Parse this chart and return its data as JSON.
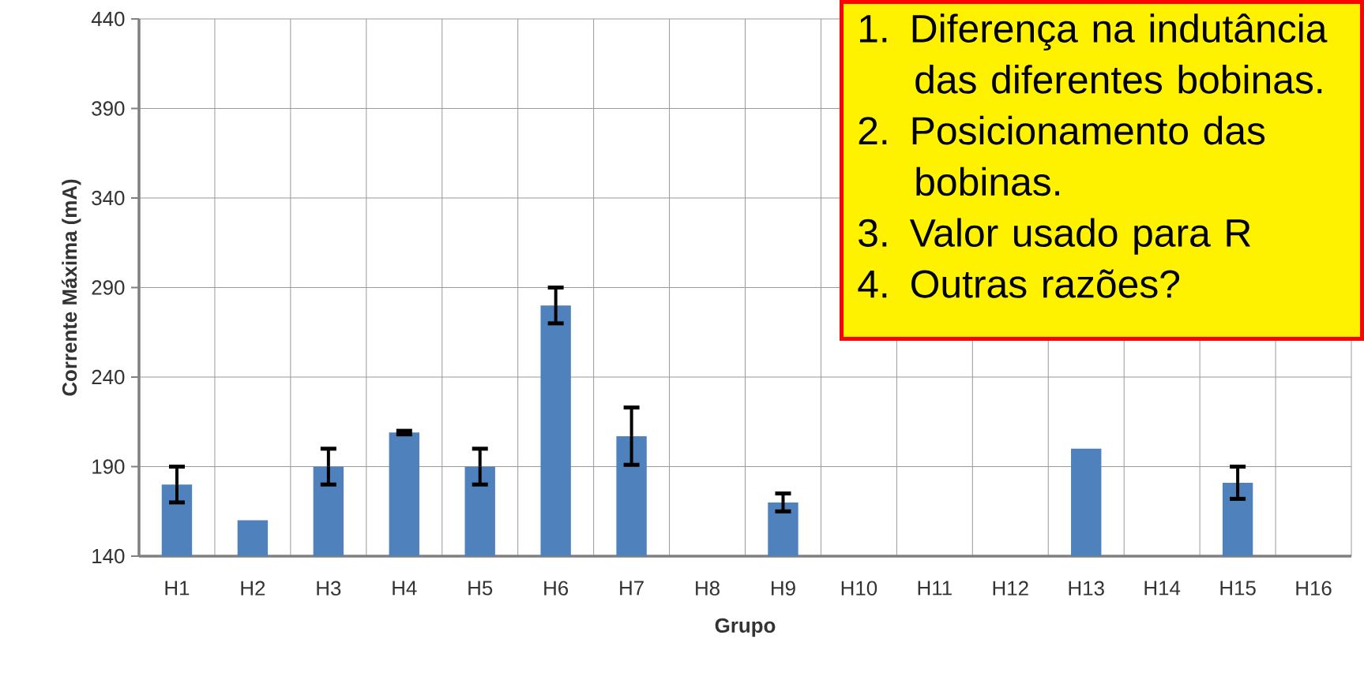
{
  "chart_data": {
    "type": "bar",
    "xlabel": "Grupo",
    "ylabel": "Corrente Máxima (mA)",
    "categories": [
      "H1",
      "H2",
      "H3",
      "H4",
      "H5",
      "H6",
      "H7",
      "H8",
      "H9",
      "H10",
      "H11",
      "H12",
      "H13",
      "H14",
      "H15",
      "H16"
    ],
    "values": [
      180,
      160,
      190,
      209,
      190,
      280,
      207,
      null,
      170,
      null,
      null,
      null,
      200,
      null,
      181,
      null
    ],
    "errors": [
      10,
      null,
      10,
      1,
      10,
      10,
      16,
      null,
      5,
      null,
      null,
      null,
      null,
      null,
      9,
      null
    ],
    "color": "#4f81bd",
    "ylim": [
      140,
      440
    ],
    "yticks": [
      140,
      190,
      240,
      290,
      340,
      390,
      440
    ],
    "grid": true,
    "annotations": [
      "1. Diferença na indutância das diferentes bobinas.",
      "2. Posicionamento das bobinas.",
      "3. Valor usado para R",
      "4. Outras razões?"
    ]
  }
}
